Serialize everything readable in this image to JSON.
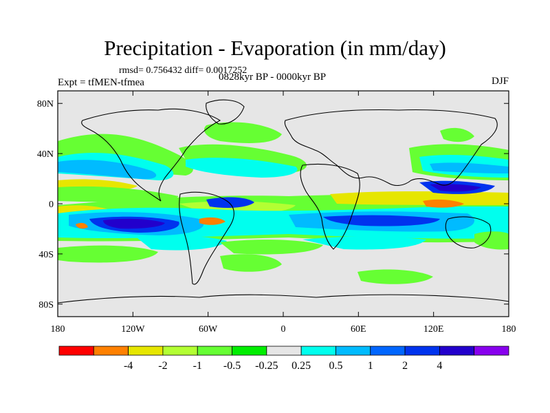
{
  "title": "Precipitation - Evaporation (in mm/day)",
  "stats_line": "rmsd= 0.756432 diff= 0.0017252",
  "experiment_label": "Expt = tfMEN-tfmea",
  "period_label": "0828kyr BP - 0000kyr BP",
  "season_label": "DJF",
  "lat_ticks": [
    {
      "value": 80,
      "label": "80N"
    },
    {
      "value": 40,
      "label": "40N"
    },
    {
      "value": 0,
      "label": "0"
    },
    {
      "value": -40,
      "label": "40S"
    },
    {
      "value": -80,
      "label": "80S"
    }
  ],
  "lon_ticks": [
    {
      "value": -180,
      "label": "180"
    },
    {
      "value": -120,
      "label": "120W"
    },
    {
      "value": -60,
      "label": "60W"
    },
    {
      "value": 0,
      "label": "0"
    },
    {
      "value": 60,
      "label": "60E"
    },
    {
      "value": 120,
      "label": "120E"
    },
    {
      "value": 180,
      "label": "180"
    }
  ],
  "colorbar": {
    "colors": [
      "#ff0000",
      "#ff8000",
      "#e6e600",
      "#b3ff33",
      "#66ff33",
      "#00ee00",
      "#e6e6e6",
      "#00ffee",
      "#00bbff",
      "#0066ff",
      "#0033ee",
      "#2200cc",
      "#8800ee"
    ],
    "labels": [
      "-4",
      "-2",
      "-1",
      "-0.5",
      "-0.25",
      "0.25",
      "0.5",
      "1",
      "2",
      "4"
    ]
  },
  "background_color": "#e6e6e6"
}
